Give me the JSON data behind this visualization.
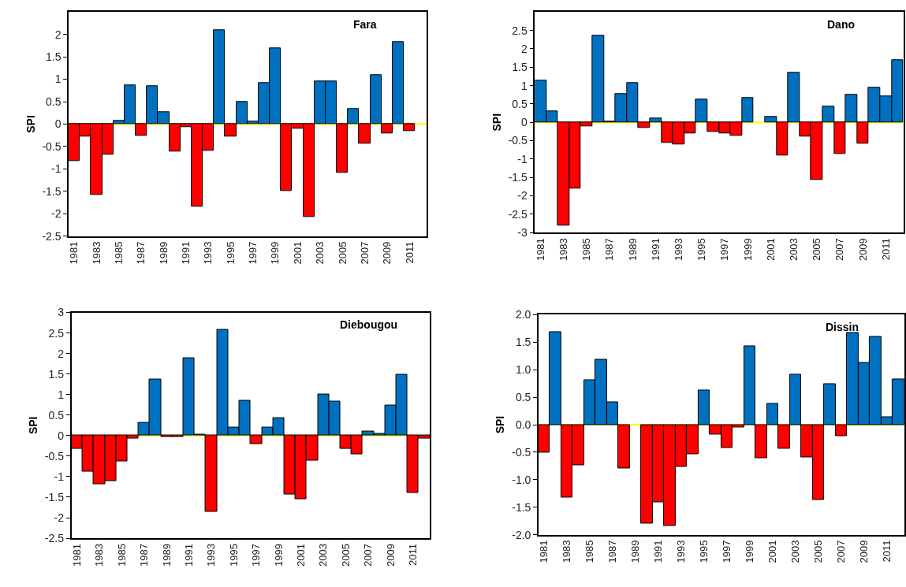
{
  "chart_data": [
    {
      "type": "bar",
      "title": "Fara",
      "ylabel": "SPI",
      "categories": [
        "1981",
        null,
        "1983",
        null,
        "1985",
        null,
        "1987",
        null,
        "1989",
        null,
        "1991",
        null,
        "1993",
        null,
        "1995",
        null,
        "1997",
        null,
        "1999",
        null,
        "2001",
        null,
        "2003",
        null,
        "2005",
        null,
        "2007",
        null,
        "2009",
        null,
        "2011",
        null
      ],
      "values": [
        -0.82,
        -0.28,
        -1.58,
        -0.68,
        0.08,
        0.87,
        -0.26,
        0.84,
        0.27,
        -0.61,
        -0.07,
        -1.85,
        -0.6,
        2.09,
        -0.28,
        0.49,
        0.06,
        0.91,
        1.69,
        -1.5,
        -0.1,
        -2.07,
        0.95,
        0.96,
        -1.08,
        0.33,
        -0.43,
        1.1,
        -0.2,
        1.84,
        -0.15,
        null
      ],
      "colors": [
        "#ff0000",
        "#ff0000",
        "#ff0000",
        "#ff0000",
        "#0070c0",
        "#0070c0",
        "#ff0000",
        "#0070c0",
        "#0070c0",
        "#ff0000",
        "#ff0000",
        "#ff0000",
        "#ff0000",
        "#0070c0",
        "#ff0000",
        "#0070c0",
        "#0070c0",
        "#0070c0",
        "#0070c0",
        "#ff0000",
        "#ff0000",
        "#ff0000",
        "#0070c0",
        "#0070c0",
        "#ff0000",
        "#0070c0",
        "#ff0000",
        "#0070c0",
        "#ff0000",
        "#0070c0",
        "#ff0000",
        null
      ],
      "ylim": [
        -2.5,
        2.5
      ],
      "yticks": [
        -2.5,
        -2,
        -1.5,
        -1,
        -0.5,
        0,
        0.5,
        1,
        1.5,
        2
      ],
      "ref_lines": [
        {
          "axis": "y",
          "value": 0,
          "label": null,
          "color": "#ffff00"
        }
      ]
    },
    {
      "type": "bar",
      "title": "Dano",
      "ylabel": "SPI",
      "categories": [
        "1981",
        null,
        "1983",
        null,
        "1985",
        null,
        "1987",
        null,
        "1989",
        null,
        "1991",
        null,
        "1993",
        null,
        "1995",
        null,
        "1997",
        null,
        "1999",
        null,
        "2001",
        null,
        "2003",
        null,
        "2005",
        null,
        "2007",
        null,
        "2009",
        null,
        "2011",
        null
      ],
      "values": [
        1.13,
        0.3,
        -2.8,
        -1.81,
        -0.1,
        2.36,
        0.03,
        0.78,
        1.08,
        -0.14,
        0.1,
        -0.56,
        -0.59,
        -0.3,
        0.62,
        -0.25,
        -0.3,
        -0.37,
        0.66,
        null,
        0.14,
        -0.9,
        1.34,
        -0.38,
        -1.56,
        0.43,
        -0.85,
        0.75,
        -0.58,
        0.94,
        0.7,
        1.7
      ],
      "colors": [
        "#0070c0",
        "#0070c0",
        "#ff0000",
        "#ff0000",
        "#ff0000",
        "#0070c0",
        "#0070c0",
        "#0070c0",
        "#0070c0",
        "#ff0000",
        "#0070c0",
        "#ff0000",
        "#ff0000",
        "#ff0000",
        "#0070c0",
        "#ff0000",
        "#ff0000",
        "#ff0000",
        "#0070c0",
        null,
        "#0070c0",
        "#ff0000",
        "#0070c0",
        "#ff0000",
        "#ff0000",
        "#0070c0",
        "#ff0000",
        "#0070c0",
        "#ff0000",
        "#0070c0",
        "#0070c0",
        "#0070c0"
      ],
      "ylim": [
        -3,
        3
      ],
      "yticks": [
        -3,
        -2.5,
        -2,
        -1.5,
        -1,
        -0.5,
        0,
        0.5,
        1,
        1.5,
        2,
        2.5
      ],
      "ref_lines": [
        {
          "axis": "y",
          "value": 0,
          "label": null,
          "color": "#ffff00"
        }
      ]
    },
    {
      "type": "bar",
      "title": "Diebougou",
      "ylabel": "SPI",
      "categories": [
        "1981",
        null,
        "1983",
        null,
        "1985",
        null,
        "1987",
        null,
        "1989",
        null,
        "1991",
        null,
        "1993",
        null,
        "1995",
        null,
        "1997",
        null,
        "1999",
        null,
        "2001",
        null,
        "2003",
        null,
        "2005",
        null,
        "2007",
        null,
        "2009",
        null,
        "2011",
        null
      ],
      "values": [
        -0.32,
        -0.87,
        -1.19,
        -1.11,
        -0.63,
        -0.07,
        0.31,
        1.36,
        -0.03,
        -0.03,
        1.88,
        0.02,
        -1.86,
        2.58,
        0.19,
        0.85,
        -0.2,
        0.19,
        0.43,
        -1.44,
        -1.55,
        -0.6,
        1.01,
        0.84,
        -0.32,
        -0.45,
        0.1,
        0.04,
        0.73,
        1.49,
        -1.39,
        -0.08
      ],
      "colors": [
        "#ff0000",
        "#ff0000",
        "#ff0000",
        "#ff0000",
        "#ff0000",
        "#ff0000",
        "#0070c0",
        "#0070c0",
        "#ff0000",
        "#ff0000",
        "#0070c0",
        "#0070c0",
        "#ff0000",
        "#0070c0",
        "#0070c0",
        "#0070c0",
        "#ff0000",
        "#0070c0",
        "#0070c0",
        "#ff0000",
        "#ff0000",
        "#ff0000",
        "#0070c0",
        "#0070c0",
        "#ff0000",
        "#ff0000",
        "#0070c0",
        "#0070c0",
        "#0070c0",
        "#0070c0",
        "#ff0000",
        "#ff0000"
      ],
      "ylim": [
        -2.5,
        3
      ],
      "yticks": [
        -2.5,
        -2,
        -1.5,
        -1,
        -0.5,
        0,
        0.5,
        1,
        1.5,
        2,
        2.5,
        3
      ],
      "ref_lines": [
        {
          "axis": "y",
          "value": 0,
          "label": null,
          "color": "#ffff00"
        }
      ]
    },
    {
      "type": "bar",
      "title": "Dissin",
      "ylabel": "SPI",
      "categories": [
        "1981",
        null,
        "1983",
        null,
        "1985",
        null,
        "1987",
        null,
        "1989",
        null,
        "1991",
        null,
        "1993",
        null,
        "1995",
        null,
        "1997",
        null,
        "1999",
        null,
        "2001",
        null,
        "2003",
        null,
        "2005",
        null,
        "2007",
        null,
        "2009",
        null,
        "2011",
        null
      ],
      "values": [
        -0.5,
        1.69,
        -1.33,
        -0.74,
        0.81,
        1.18,
        0.41,
        -0.8,
        null,
        -1.79,
        -1.41,
        -1.84,
        -0.77,
        -0.54,
        0.63,
        -0.18,
        -0.42,
        -0.05,
        1.42,
        -0.61,
        0.38,
        -0.44,
        0.91,
        -0.59,
        -1.37,
        0.74,
        -0.21,
        1.67,
        1.13,
        1.6,
        0.14,
        0.82
      ],
      "colors": [
        "#ff0000",
        "#0070c0",
        "#ff0000",
        "#ff0000",
        "#0070c0",
        "#0070c0",
        "#0070c0",
        "#ff0000",
        null,
        "#ff0000",
        "#ff0000",
        "#ff0000",
        "#ff0000",
        "#ff0000",
        "#0070c0",
        "#ff0000",
        "#ff0000",
        "#ff0000",
        "#0070c0",
        "#ff0000",
        "#0070c0",
        "#ff0000",
        "#0070c0",
        "#ff0000",
        "#ff0000",
        "#0070c0",
        "#ff0000",
        "#0070c0",
        "#0070c0",
        "#0070c0",
        "#0070c0",
        "#0070c0"
      ],
      "ylim": [
        -2,
        2
      ],
      "yticks": [
        {
          "value": -2,
          "label": "-2.0"
        },
        {
          "value": -1.5,
          "label": "-1.5"
        },
        {
          "value": -1,
          "label": "-1.0"
        },
        {
          "value": -0.5,
          "label": "-0.5"
        },
        {
          "value": 0,
          "label": "0.0"
        },
        {
          "value": 0.5,
          "label": "0.5"
        },
        {
          "value": 1,
          "label": "1.0"
        },
        {
          "value": 1.5,
          "label": "1.5"
        },
        {
          "value": 2,
          "label": "2.0"
        }
      ],
      "ref_lines": [
        {
          "axis": "y",
          "value": 0,
          "label": null,
          "color": "#ffff00"
        }
      ]
    }
  ]
}
